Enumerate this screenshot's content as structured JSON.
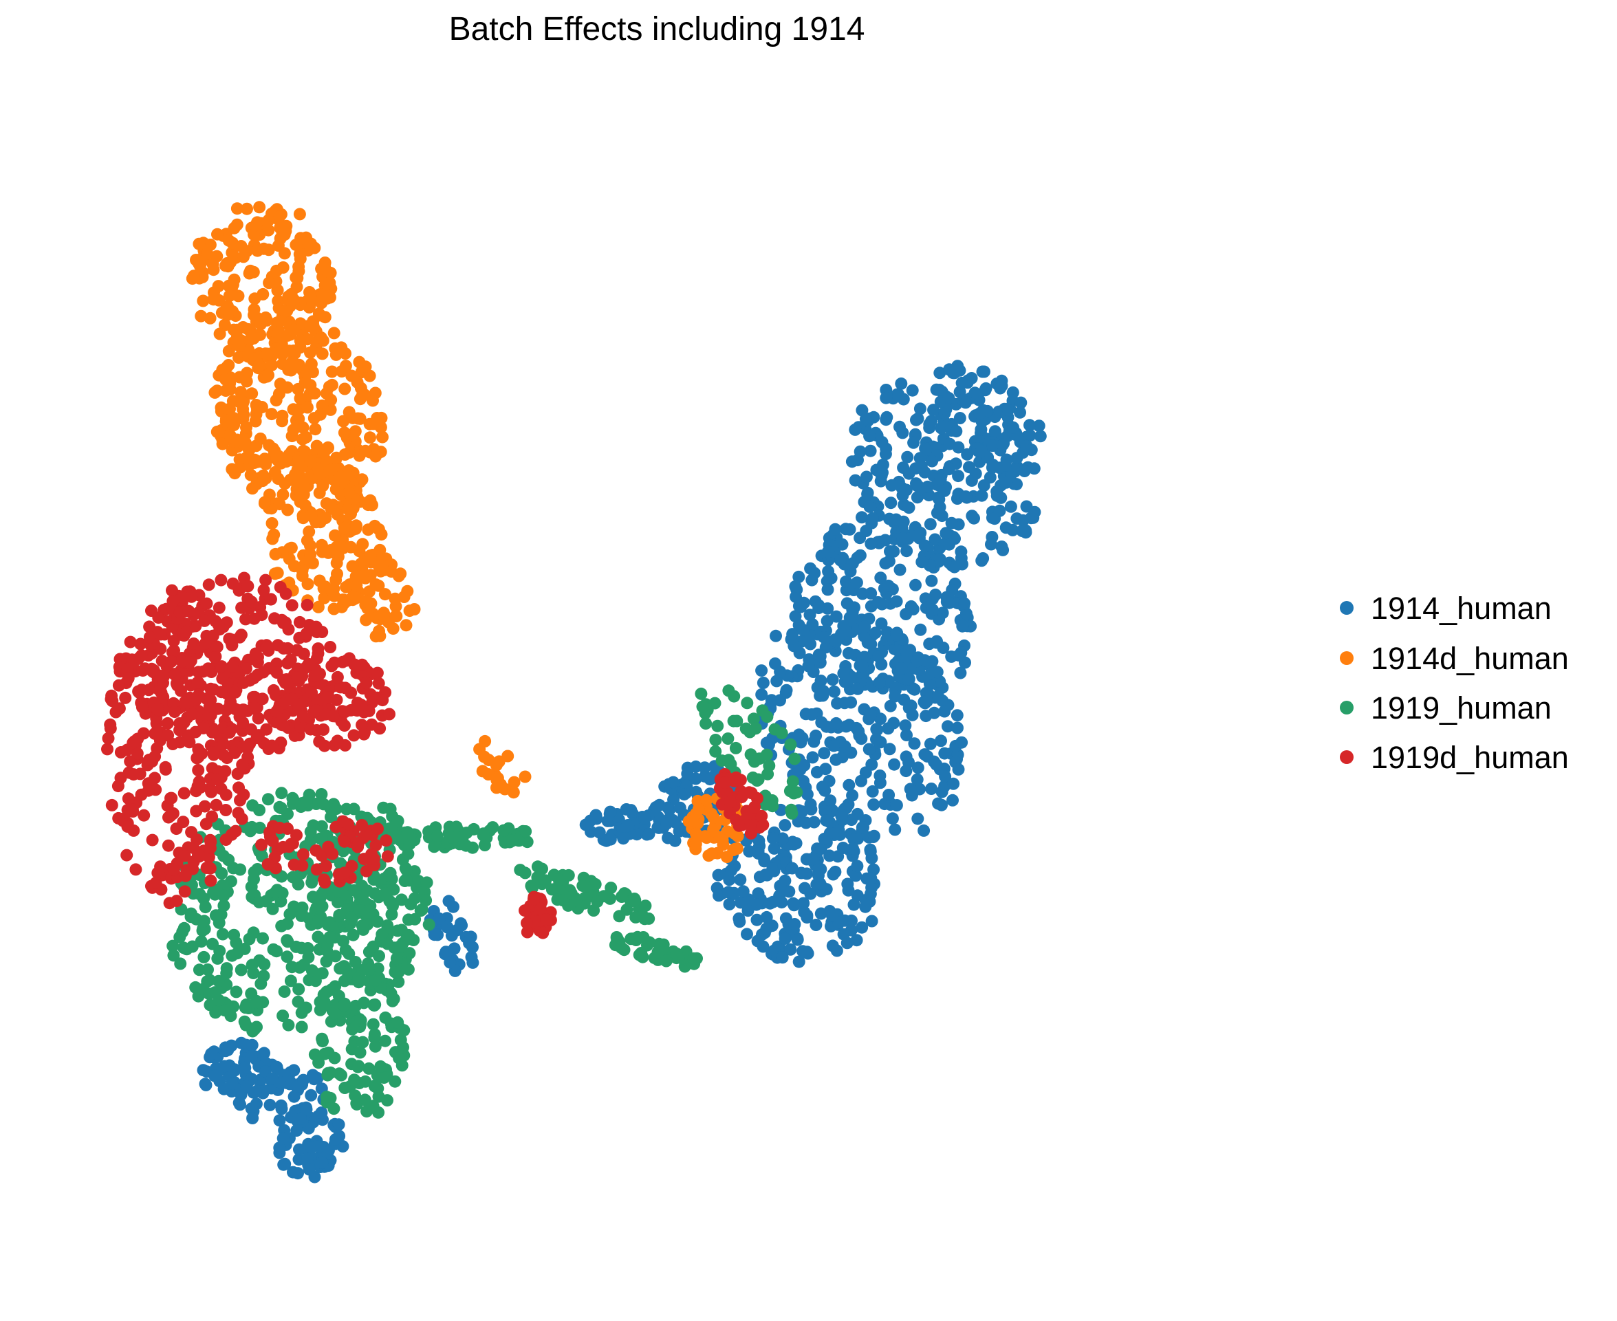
{
  "chart_data": {
    "type": "scatter",
    "title": "Batch Effects including 1914",
    "xlabel": "",
    "ylabel": "",
    "axes_visible": false,
    "grid": false,
    "legend_position": "right",
    "xlim": [
      0,
      100
    ],
    "ylim": [
      0,
      100
    ],
    "series": [
      {
        "name": "1914_human",
        "color": "#1f77b4",
        "regions": [
          {
            "shape": "ellipse",
            "cx": 74,
            "cy": 67,
            "rx": 7,
            "ry": 9,
            "angle": 40,
            "n": 230
          },
          {
            "shape": "ellipse",
            "cx": 67,
            "cy": 45,
            "rx": 8,
            "ry": 11,
            "angle": 25,
            "n": 260
          },
          {
            "shape": "ellipse",
            "cx": 62,
            "cy": 31,
            "rx": 7,
            "ry": 7,
            "angle": 30,
            "n": 200
          },
          {
            "shape": "ellipse",
            "cx": 69,
            "cy": 55,
            "rx": 7,
            "ry": 9,
            "angle": 30,
            "n": 200
          },
          {
            "shape": "ellipse",
            "cx": 78,
            "cy": 72,
            "rx": 3,
            "ry": 6,
            "angle": 45,
            "n": 70
          },
          {
            "shape": "ellipse",
            "cx": 53,
            "cy": 38,
            "rx": 4,
            "ry": 3,
            "angle": 35,
            "n": 80
          },
          {
            "shape": "ellipse",
            "cx": 47,
            "cy": 36,
            "rx": 3,
            "ry": 1.5,
            "angle": 5,
            "n": 40
          },
          {
            "shape": "ellipse",
            "cx": 15,
            "cy": 14,
            "rx": 3,
            "ry": 3,
            "angle": 0,
            "n": 60
          },
          {
            "shape": "ellipse",
            "cx": 21,
            "cy": 8,
            "rx": 3,
            "ry": 3,
            "angle": 0,
            "n": 60
          },
          {
            "shape": "ellipse",
            "cx": 19,
            "cy": 12,
            "rx": 4,
            "ry": 3,
            "angle": 0,
            "n": 50
          },
          {
            "shape": "ellipse",
            "cx": 33,
            "cy": 26,
            "rx": 1.5,
            "ry": 4,
            "angle": 20,
            "n": 30
          }
        ]
      },
      {
        "name": "1914d_human",
        "color": "#ff7f0e",
        "regions": [
          {
            "shape": "ellipse",
            "cx": 17,
            "cy": 84,
            "rx": 6,
            "ry": 7,
            "angle": 0,
            "n": 200
          },
          {
            "shape": "ellipse",
            "cx": 20,
            "cy": 72,
            "rx": 7,
            "ry": 9,
            "angle": 15,
            "n": 280
          },
          {
            "shape": "ellipse",
            "cx": 22,
            "cy": 62,
            "rx": 5,
            "ry": 7,
            "angle": 10,
            "n": 150
          },
          {
            "shape": "ellipse",
            "cx": 27,
            "cy": 56,
            "rx": 3,
            "ry": 4,
            "angle": 20,
            "n": 50
          },
          {
            "shape": "ellipse",
            "cx": 55,
            "cy": 36,
            "rx": 2.5,
            "ry": 3,
            "angle": 0,
            "n": 50
          },
          {
            "shape": "ellipse",
            "cx": 37,
            "cy": 41,
            "rx": 1.5,
            "ry": 3,
            "angle": 40,
            "n": 18
          }
        ]
      },
      {
        "name": "1919_human",
        "color": "#279e68",
        "regions": [
          {
            "shape": "ellipse",
            "cx": 20,
            "cy": 28,
            "rx": 11,
            "ry": 11,
            "angle": 0,
            "n": 380
          },
          {
            "shape": "ellipse",
            "cx": 25,
            "cy": 17,
            "rx": 4,
            "ry": 7,
            "angle": 0,
            "n": 100
          },
          {
            "shape": "ellipse",
            "cx": 26,
            "cy": 30,
            "rx": 5,
            "ry": 8,
            "angle": 0,
            "n": 100
          },
          {
            "shape": "ellipse",
            "cx": 34,
            "cy": 35,
            "rx": 6,
            "ry": 1,
            "angle": 0,
            "n": 60
          },
          {
            "shape": "ellipse",
            "cx": 44,
            "cy": 30,
            "rx": 6,
            "ry": 1.5,
            "angle": -20,
            "n": 60
          },
          {
            "shape": "ellipse",
            "cx": 50,
            "cy": 25,
            "rx": 4,
            "ry": 1,
            "angle": -15,
            "n": 40
          },
          {
            "shape": "ellipse",
            "cx": 58,
            "cy": 43,
            "rx": 3,
            "ry": 7,
            "angle": 30,
            "n": 50
          }
        ]
      },
      {
        "name": "1919d_human",
        "color": "#d62728",
        "regions": [
          {
            "shape": "ellipse",
            "cx": 10,
            "cy": 43,
            "rx": 6,
            "ry": 14,
            "angle": 0,
            "n": 280
          },
          {
            "shape": "ellipse",
            "cx": 15,
            "cy": 50,
            "rx": 8,
            "ry": 8,
            "angle": 0,
            "n": 240
          },
          {
            "shape": "ellipse",
            "cx": 23,
            "cy": 47,
            "rx": 5,
            "ry": 4,
            "angle": 0,
            "n": 110
          },
          {
            "shape": "ellipse",
            "cx": 22,
            "cy": 34,
            "rx": 6,
            "ry": 3,
            "angle": 0,
            "n": 60
          },
          {
            "shape": "ellipse",
            "cx": 57,
            "cy": 38,
            "rx": 1.5,
            "ry": 3,
            "angle": 30,
            "n": 40
          },
          {
            "shape": "ellipse",
            "cx": 40,
            "cy": 28,
            "rx": 1.2,
            "ry": 2,
            "angle": 0,
            "n": 30
          }
        ]
      }
    ]
  }
}
